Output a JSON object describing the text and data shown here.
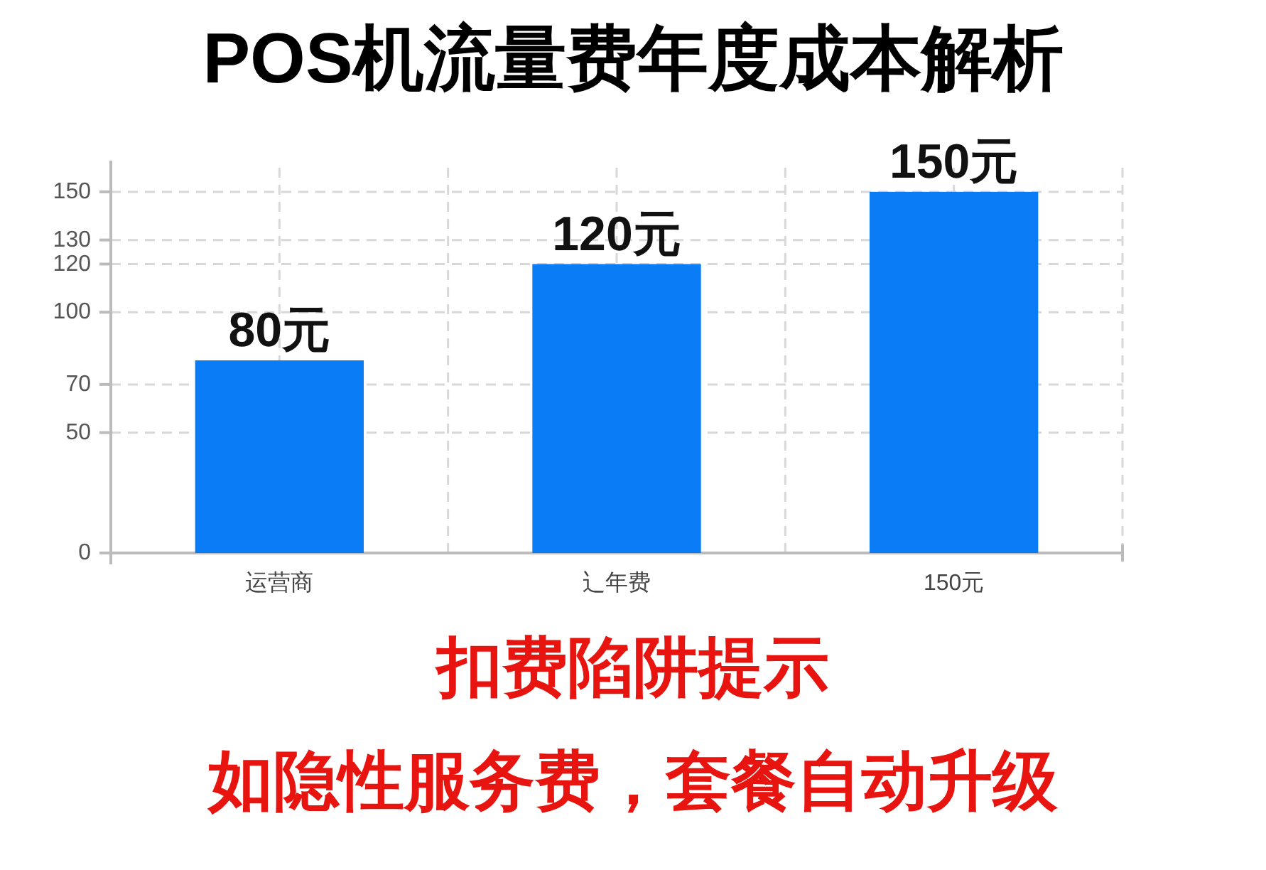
{
  "chart_data": {
    "type": "bar",
    "title": "POS机流量费年度成本解析",
    "categories": [
      "运营商",
      "辶年费",
      "150元"
    ],
    "values": [
      80,
      120,
      150
    ],
    "color": "#0a7cf5",
    "value_labels": [
      "80元",
      "120元",
      "150元"
    ],
    "ylim": [
      0,
      160
    ],
    "yticks": [
      0,
      50,
      70,
      100,
      120,
      130,
      150
    ],
    "grid": true,
    "annotations": [
      "扣费陷阱提示",
      "如隐性服务费，套餐自动升级"
    ]
  }
}
